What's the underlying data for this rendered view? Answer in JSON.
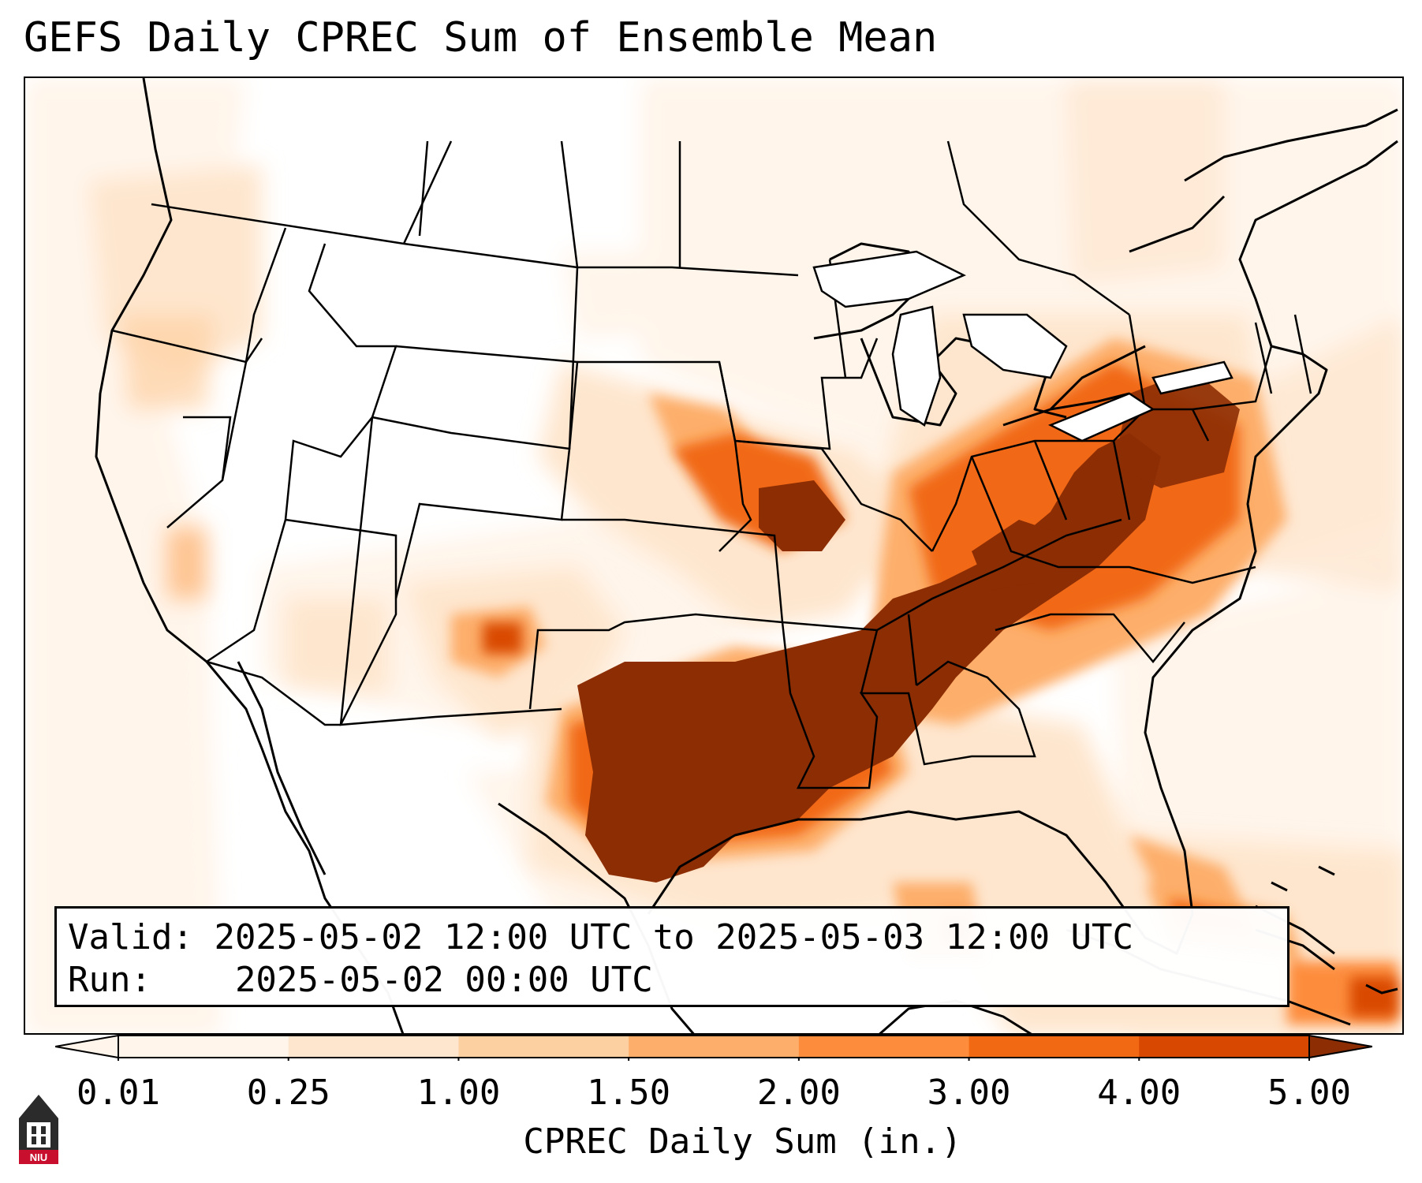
{
  "title": "GEFS Daily CPREC Sum of Ensemble Mean",
  "info": {
    "valid_label": "Valid:",
    "valid_value": "2025-05-02 12:00 UTC to 2025-05-03 12:00 UTC",
    "run_label": "Run:",
    "run_value": "2025-05-02 00:00 UTC"
  },
  "colorbar": {
    "label": "CPREC Daily Sum (in.)",
    "ticks": [
      "0.01",
      "0.25",
      "1.00",
      "1.50",
      "2.00",
      "3.00",
      "4.00",
      "5.00"
    ],
    "colors": [
      "#fff5eb",
      "#fee6ce",
      "#fdd0a2",
      "#fdae6b",
      "#fd8d3c",
      "#f16913",
      "#d94801",
      "#8c2d04"
    ],
    "extend": "both"
  },
  "legend_palette": {
    "trace": "#fff5eb",
    "light": "#fee6ce",
    "moderate": "#fdae6b",
    "heavy": "#f16913",
    "extreme": "#8c2d04"
  },
  "logo": {
    "text": "NIU",
    "icon": "niu-tower-logo-icon"
  }
}
